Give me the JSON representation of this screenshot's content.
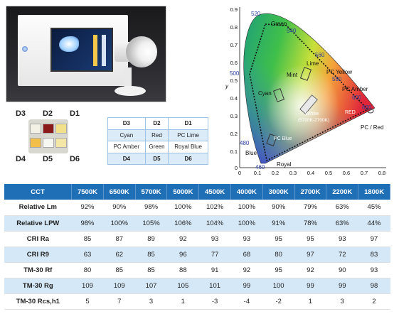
{
  "led_chip": {
    "labels_top": [
      "D3",
      "D2",
      "D1"
    ],
    "labels_bottom": [
      "D4",
      "D5",
      "D6"
    ]
  },
  "layout_table": {
    "rows": [
      [
        "D3",
        "D2",
        "D1"
      ],
      [
        "Cyan",
        "Red",
        "PC Lime"
      ],
      [
        "PC Amber",
        "Green",
        "Royal Blue"
      ],
      [
        "D4",
        "D5",
        "D6"
      ]
    ]
  },
  "cie": {
    "wavelength_labels": [
      "520",
      "540",
      "560",
      "580",
      "600",
      "620",
      "500",
      "480",
      "460"
    ],
    "region_labels": {
      "green": "Green",
      "lime": "Lime",
      "pc_yellow": "PC Yellow",
      "mint": "Mint",
      "pc_amber": "PC Amber",
      "cyan": "Cyan",
      "white": "White",
      "white_range": "(5700K-2700K)",
      "red": "RED",
      "pc_red": "PC / Red",
      "pc_blue": "PC Blue",
      "blue": "Blue",
      "royal": "Royal"
    },
    "axis_y_label": "y",
    "x_ticks": [
      "0",
      "0.1",
      "0.2",
      "0.3",
      "0.4",
      "0.5",
      "0.6",
      "0.7",
      "0.8"
    ],
    "y_ticks": [
      "0.9",
      "0.8",
      "0.7",
      "0.6",
      "0.5",
      "0.4",
      "0.3",
      "0.2",
      "0.1",
      "0"
    ]
  },
  "main_table": {
    "header": [
      "CCT",
      "7500K",
      "6500K",
      "5700K",
      "5000K",
      "4500K",
      "4000K",
      "3000K",
      "2700K",
      "2200K",
      "1800K"
    ],
    "rows": [
      [
        "Relative Lm",
        "92%",
        "90%",
        "98%",
        "100%",
        "102%",
        "100%",
        "90%",
        "79%",
        "63%",
        "45%"
      ],
      [
        "Relative LPW",
        "98%",
        "100%",
        "105%",
        "106%",
        "104%",
        "100%",
        "91%",
        "78%",
        "63%",
        "44%"
      ],
      [
        "CRI Ra",
        "85",
        "87",
        "89",
        "92",
        "93",
        "93",
        "95",
        "95",
        "93",
        "97"
      ],
      [
        "CRI R9",
        "63",
        "62",
        "85",
        "96",
        "77",
        "68",
        "80",
        "97",
        "72",
        "83"
      ],
      [
        "TM-30 Rf",
        "80",
        "85",
        "85",
        "88",
        "91",
        "92",
        "95",
        "92",
        "90",
        "93"
      ],
      [
        "TM-30 Rg",
        "109",
        "109",
        "107",
        "105",
        "101",
        "99",
        "100",
        "99",
        "99",
        "98"
      ],
      [
        "TM-30 Rcs,h1",
        "5",
        "7",
        "3",
        "1",
        "-3",
        "-4",
        "-2",
        "1",
        "3",
        "2"
      ]
    ]
  },
  "colors": {
    "header_blue": "#1f6fb6",
    "row_alt": "#d5e8f7",
    "accent_blue": "#2a3f9e"
  }
}
